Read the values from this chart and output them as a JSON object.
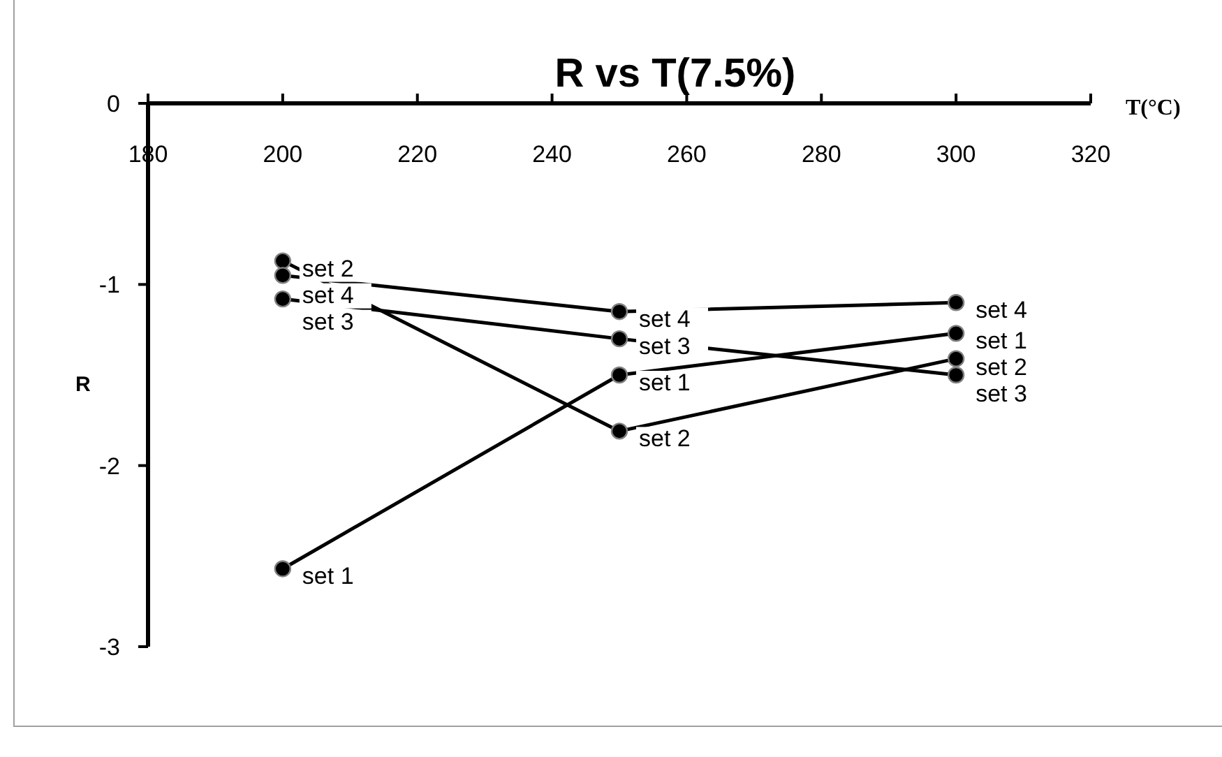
{
  "chart_data": {
    "type": "line",
    "title": "R vs T(7.5%)",
    "xlabel": "T(°C)",
    "ylabel": "R",
    "xlim": [
      180,
      320
    ],
    "xticks": [
      180,
      200,
      220,
      240,
      260,
      280,
      300,
      320
    ],
    "ylim": [
      -3,
      0
    ],
    "yticks": [
      0,
      -1,
      -2,
      -3
    ],
    "x": [
      200,
      250,
      300
    ],
    "series": [
      {
        "name": "set 1",
        "color": "#000000",
        "values": [
          -2.57,
          -1.5,
          -1.27
        ]
      },
      {
        "name": "set 2",
        "color": "#000000",
        "values": [
          -0.87,
          -1.81,
          -1.41
        ]
      },
      {
        "name": "set 3",
        "color": "#000000",
        "values": [
          -1.08,
          -1.3,
          -1.5
        ]
      },
      {
        "name": "set 4",
        "color": "#000000",
        "values": [
          -0.95,
          -1.15,
          -1.1
        ]
      }
    ],
    "marker": "circle",
    "line_style": "solid",
    "grid": false
  }
}
